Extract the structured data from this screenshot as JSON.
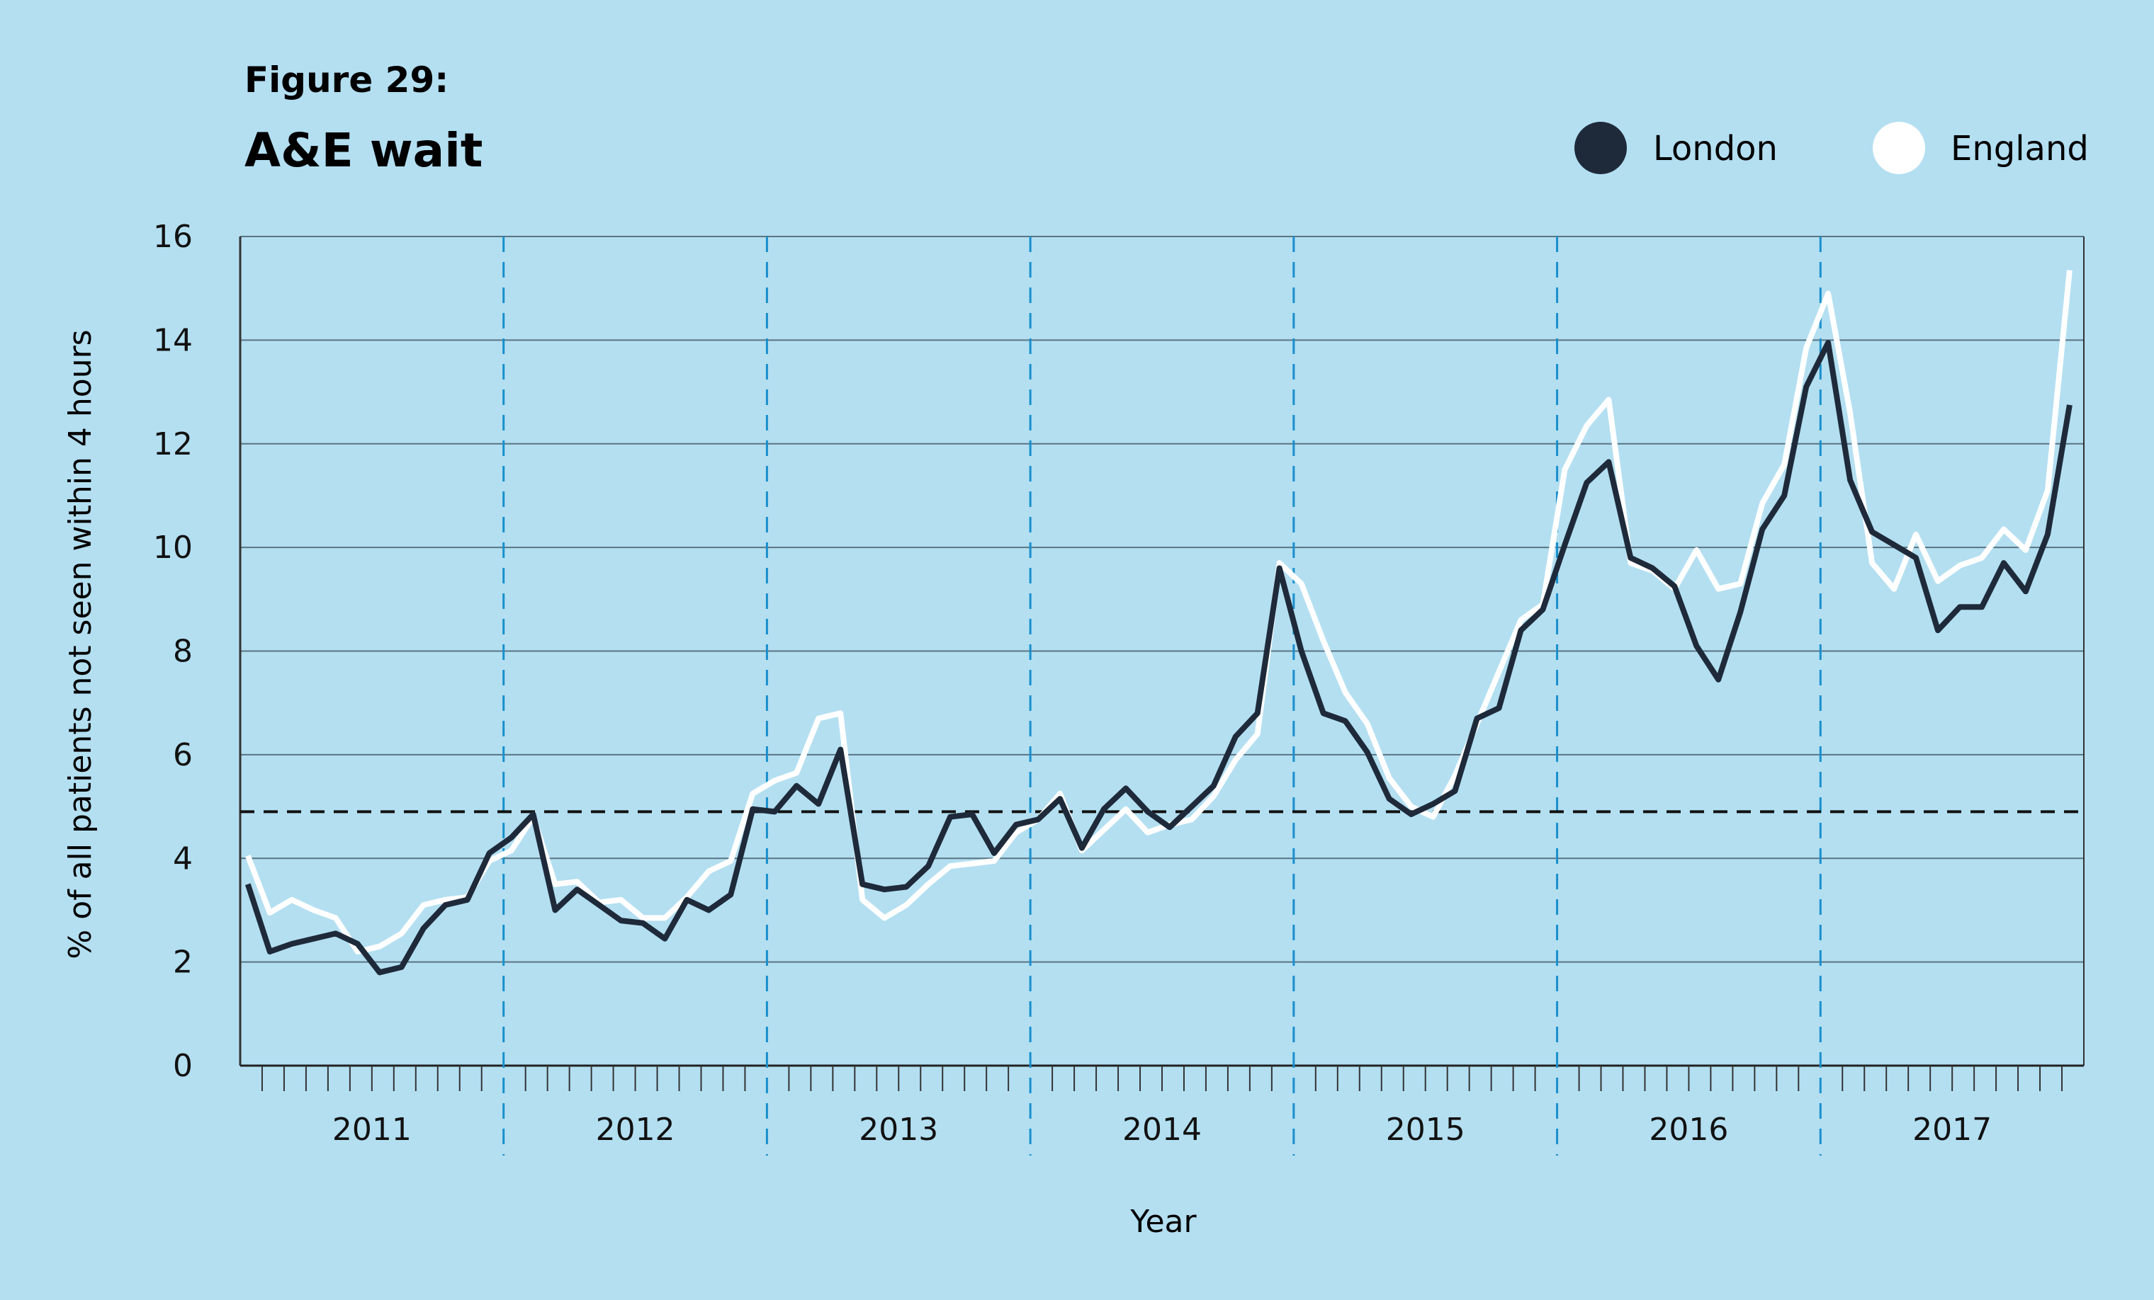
{
  "figure_label": "Figure 29:",
  "colors": {
    "background": "#b3dff1",
    "london": "#1e2a3a",
    "england": "#ffffff",
    "year_divider": "#1a8fcc",
    "target": "#111111",
    "grid": "#5a7482"
  },
  "chart_data": {
    "type": "line",
    "title": "A&E wait",
    "xlabel": "Year",
    "ylabel": "% of all patients not seen within 4 hours",
    "ylim": [
      0,
      16
    ],
    "yticks": [
      0,
      2,
      4,
      6,
      8,
      10,
      12,
      14,
      16
    ],
    "grid": true,
    "legend_position": "top-right",
    "years": [
      "2011",
      "2012",
      "2013",
      "2014",
      "2015",
      "2016",
      "2017"
    ],
    "x_unit": "month",
    "target_line": 4.9,
    "series": [
      {
        "name": "London",
        "color": "#1e2a3a",
        "values": [
          3.5,
          2.2,
          2.35,
          2.45,
          2.55,
          2.35,
          1.8,
          1.9,
          2.65,
          3.1,
          3.2,
          4.1,
          4.4,
          4.85,
          3.0,
          3.4,
          3.1,
          2.8,
          2.75,
          2.45,
          3.2,
          3.0,
          3.3,
          4.95,
          4.9,
          5.4,
          5.05,
          6.1,
          3.5,
          3.4,
          3.45,
          3.85,
          4.8,
          4.85,
          4.1,
          4.65,
          4.75,
          5.15,
          4.2,
          4.95,
          5.35,
          4.9,
          4.6,
          5.0,
          5.4,
          6.35,
          6.8,
          9.6,
          8.0,
          6.8,
          6.65,
          6.05,
          5.15,
          4.85,
          5.05,
          5.3,
          6.7,
          6.9,
          8.4,
          8.8,
          10.05,
          11.25,
          11.65,
          9.8,
          9.6,
          9.25,
          8.1,
          7.45,
          8.75,
          10.35,
          11.0,
          13.1,
          13.95,
          11.3,
          10.3,
          10.05,
          9.8,
          8.4,
          8.85,
          8.85,
          9.7,
          9.15,
          10.25,
          12.75
        ]
      },
      {
        "name": "England",
        "color": "#ffffff",
        "values": [
          4.05,
          2.95,
          3.2,
          3.0,
          2.85,
          2.2,
          2.3,
          2.55,
          3.1,
          3.2,
          3.25,
          3.95,
          4.15,
          4.8,
          3.5,
          3.55,
          3.15,
          3.2,
          2.85,
          2.85,
          3.25,
          3.75,
          3.95,
          5.25,
          5.5,
          5.65,
          6.7,
          6.8,
          3.2,
          2.85,
          3.1,
          3.5,
          3.85,
          3.9,
          3.95,
          4.5,
          4.75,
          5.25,
          4.15,
          4.55,
          4.95,
          4.5,
          4.65,
          4.75,
          5.2,
          5.9,
          6.4,
          9.7,
          9.3,
          8.2,
          7.2,
          6.6,
          5.55,
          5.0,
          4.8,
          5.6,
          6.6,
          7.6,
          8.6,
          8.9,
          11.5,
          12.35,
          12.85,
          9.7,
          9.55,
          9.2,
          9.95,
          9.2,
          9.3,
          10.85,
          11.6,
          13.85,
          14.9,
          12.6,
          9.7,
          9.2,
          10.25,
          9.35,
          9.65,
          9.8,
          10.35,
          9.95,
          11.1,
          15.35
        ]
      }
    ]
  }
}
